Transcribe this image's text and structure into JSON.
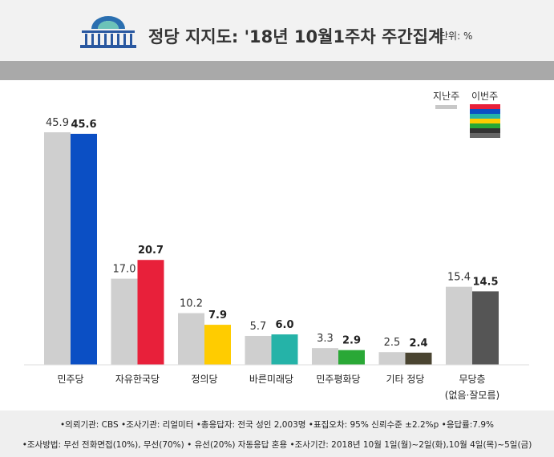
{
  "header": {
    "title": "정당 지지도: '18년 10월1주차 주간집계",
    "unit": "단위: %"
  },
  "legend": {
    "previous": "지난주",
    "current": "이번주",
    "previous_color": "#c8c8c8",
    "current_colors": [
      "#e8203a",
      "#0b4fc4",
      "#25b3a8",
      "#ffcc00",
      "#2aa836",
      "#333333",
      "#666666"
    ]
  },
  "chart_data": {
    "type": "bar",
    "categories": [
      "민주당",
      "자유한국당",
      "정의당",
      "바른미래당",
      "민주평화당",
      "기타 정당",
      "무당층"
    ],
    "category_sublabels": [
      "",
      "",
      "",
      "",
      "",
      "",
      "(없음·잘모름)"
    ],
    "series": [
      {
        "name": "지난주",
        "values": [
          45.9,
          17.0,
          10.2,
          5.7,
          3.3,
          2.5,
          15.4
        ],
        "color": "#cfcfcf"
      },
      {
        "name": "이번주",
        "values": [
          45.6,
          20.7,
          7.9,
          6.0,
          2.9,
          2.4,
          14.5
        ],
        "colors": [
          "#0b4fc4",
          "#e8203a",
          "#ffcc00",
          "#25b3a8",
          "#2aa836",
          "#4a4431",
          "#555555"
        ]
      }
    ],
    "value_labels": [
      [
        "45.9",
        "17.0",
        "10.2",
        "5.7",
        "3.3",
        "2.5",
        "15.4"
      ],
      [
        "45.6",
        "20.7",
        "7.9",
        "6.0",
        "2.9",
        "2.4",
        "14.5"
      ]
    ],
    "ylim": [
      0,
      50
    ]
  },
  "footer": {
    "line1": "•의뢰기관: CBS •조사기관: 리얼미터 •총응답자: 전국 성인 2,003명 •표집오차: 95% 신뢰수준 ±2.2%p •응답률:7.9%",
    "line2": "•조사방법: 무선 전화면접(10%), 무선(70%) • 유선(20%) 자동응답 혼용 •조사기간: 2018년 10월 1일(월)~2일(화),10월 4일(목)~5일(금)"
  }
}
